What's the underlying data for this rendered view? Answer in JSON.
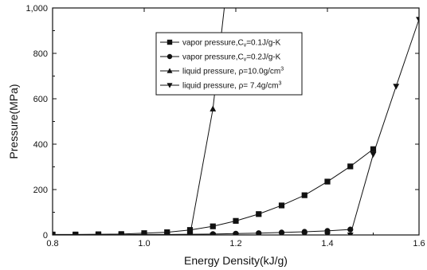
{
  "chart_data": {
    "type": "line",
    "title": "",
    "xlabel": "Energy Density(kJ/g)",
    "ylabel": "Pressure(MPa)",
    "xlim": [
      0.8,
      1.6
    ],
    "ylim": [
      0,
      1000
    ],
    "grid": false,
    "legend_position": "top-center",
    "x_ticks": [
      {
        "value": 0.8,
        "label": "0.8"
      },
      {
        "value": 1.0,
        "label": "1.0"
      },
      {
        "value": 1.2,
        "label": "1.2"
      },
      {
        "value": 1.4,
        "label": "1.4"
      },
      {
        "value": 1.6,
        "label": "1.6"
      }
    ],
    "y_ticks": [
      {
        "value": 0,
        "label": "0"
      },
      {
        "value": 200,
        "label": "200"
      },
      {
        "value": 400,
        "label": "400"
      },
      {
        "value": 600,
        "label": "600"
      },
      {
        "value": 800,
        "label": "800"
      },
      {
        "value": 1000,
        "label": "1,000"
      }
    ],
    "series": [
      {
        "name": "vapor pressure,C_v=0.1J/g-K",
        "legend_parts": [
          {
            "t": "vapor pressure,C",
            "k": "n"
          },
          {
            "t": "v",
            "k": "sub"
          },
          {
            "t": "=0.1J/g-K",
            "k": "n"
          }
        ],
        "marker": "square",
        "x": [
          0.8,
          0.85,
          0.9,
          0.95,
          1.0,
          1.05,
          1.1,
          1.15,
          1.2,
          1.25,
          1.3,
          1.35,
          1.4,
          1.45,
          1.5
        ],
        "y": [
          2,
          2,
          3,
          4,
          8,
          12,
          22,
          38,
          62,
          92,
          130,
          175,
          235,
          302,
          378
        ]
      },
      {
        "name": "vapor pressure,C_v=0.2J/g-K",
        "legend_parts": [
          {
            "t": "vapor pressure,C",
            "k": "n"
          },
          {
            "t": "v",
            "k": "sub"
          },
          {
            "t": "=0.2J/g-K",
            "k": "n"
          }
        ],
        "marker": "circle",
        "x": [
          0.8,
          0.85,
          0.9,
          0.95,
          1.0,
          1.05,
          1.1,
          1.15,
          1.2,
          1.25,
          1.3,
          1.35,
          1.4,
          1.45
        ],
        "y": [
          1,
          1,
          1,
          1,
          2,
          2,
          3,
          4,
          6,
          8,
          11,
          14,
          18,
          24
        ]
      },
      {
        "name": "liquid pressure, ρ=10.0g/cm³",
        "legend_parts": [
          {
            "t": "liquid pressure, ρ=10.0g/cm",
            "k": "n"
          },
          {
            "t": "3",
            "k": "sup"
          }
        ],
        "marker": "triangle-up",
        "x": [
          0.8,
          0.85,
          0.9,
          0.95,
          1.0,
          1.05,
          1.1,
          1.15,
          1.2
        ],
        "y": [
          0,
          0,
          0,
          0,
          0,
          0,
          0,
          555,
          1450
        ]
      },
      {
        "name": "liquid pressure, ρ= 7.4g/cm³",
        "legend_parts": [
          {
            "t": "liquid pressure, ρ= 7.4g/cm",
            "k": "n"
          },
          {
            "t": "3",
            "k": "sup"
          }
        ],
        "marker": "triangle-down",
        "x": [
          0.8,
          0.85,
          0.9,
          0.95,
          1.0,
          1.05,
          1.1,
          1.15,
          1.2,
          1.25,
          1.3,
          1.35,
          1.4,
          1.45,
          1.5,
          1.55,
          1.6
        ],
        "y": [
          0,
          0,
          0,
          0,
          0,
          0,
          0,
          0,
          0,
          0,
          0,
          0,
          0,
          0,
          355,
          655,
          950
        ]
      }
    ]
  }
}
